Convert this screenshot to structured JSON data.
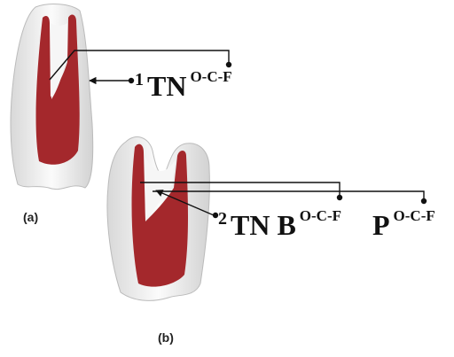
{
  "panels": [
    {
      "label": "(a)",
      "annotation": {
        "prefix": "1",
        "parts": [
          {
            "main": "TN",
            "superscript": "O-C-F"
          }
        ]
      }
    },
    {
      "label": "(b)",
      "annotation": {
        "prefix": "2",
        "parts": [
          {
            "main": "TN B",
            "superscript": "O-C-F"
          },
          {
            "main": "P",
            "superscript": "O-C-F"
          }
        ]
      }
    }
  ]
}
